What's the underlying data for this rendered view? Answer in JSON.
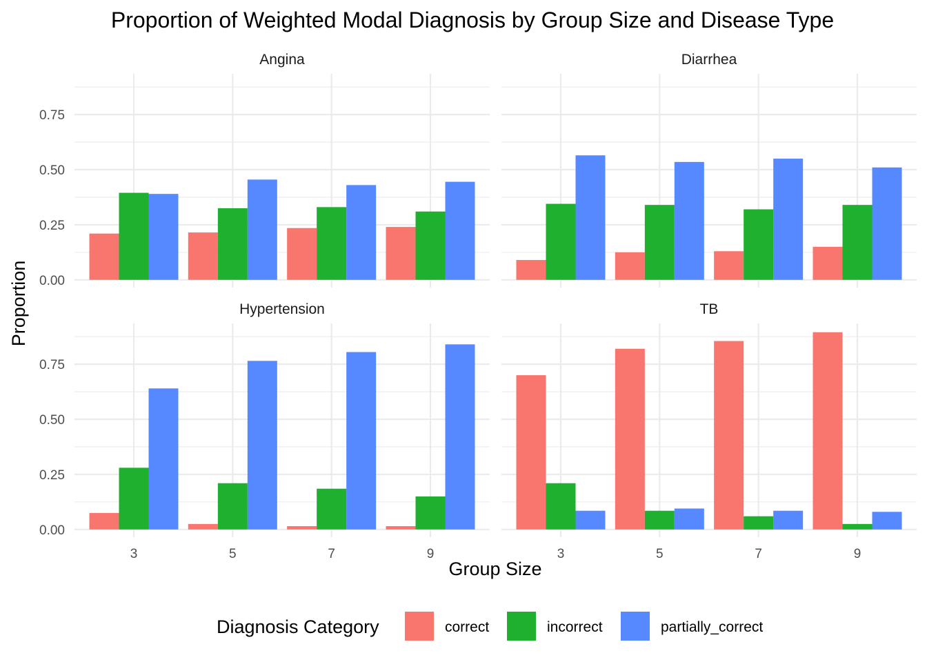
{
  "chart_data": {
    "type": "bar",
    "title": "Proportion of Weighted Modal Diagnosis by Group Size and Disease Type",
    "xlabel": "Group Size",
    "ylabel": "Proportion",
    "ylim": [
      -0.035,
      0.935
    ],
    "yticks": [
      0.0,
      0.25,
      0.5,
      0.75
    ],
    "ytick_labels": [
      "0.00",
      "0.25",
      "0.50",
      "0.75"
    ],
    "categories": [
      "3",
      "5",
      "7",
      "9"
    ],
    "grid": true,
    "legend": {
      "title": "Diagnosis Category",
      "position": "bottom",
      "entries": [
        "correct",
        "incorrect",
        "partially_correct"
      ]
    },
    "colors": {
      "correct": "#F8766D",
      "incorrect": "#1FB02F",
      "partially_correct": "#5689FF"
    },
    "facets": [
      {
        "name": "Angina",
        "series": [
          {
            "name": "correct",
            "values": [
              0.21,
              0.215,
              0.235,
              0.24
            ]
          },
          {
            "name": "incorrect",
            "values": [
              0.395,
              0.325,
              0.33,
              0.31
            ]
          },
          {
            "name": "partially_correct",
            "values": [
              0.39,
              0.455,
              0.43,
              0.445
            ]
          }
        ]
      },
      {
        "name": "Diarrhea",
        "series": [
          {
            "name": "correct",
            "values": [
              0.09,
              0.125,
              0.13,
              0.15
            ]
          },
          {
            "name": "incorrect",
            "values": [
              0.345,
              0.34,
              0.32,
              0.34
            ]
          },
          {
            "name": "partially_correct",
            "values": [
              0.565,
              0.535,
              0.55,
              0.51
            ]
          }
        ]
      },
      {
        "name": "Hypertension",
        "series": [
          {
            "name": "correct",
            "values": [
              0.075,
              0.025,
              0.015,
              0.015
            ]
          },
          {
            "name": "incorrect",
            "values": [
              0.28,
              0.21,
              0.185,
              0.15
            ]
          },
          {
            "name": "partially_correct",
            "values": [
              0.64,
              0.765,
              0.805,
              0.84
            ]
          }
        ]
      },
      {
        "name": "TB",
        "series": [
          {
            "name": "correct",
            "values": [
              0.7,
              0.82,
              0.855,
              0.895
            ]
          },
          {
            "name": "incorrect",
            "values": [
              0.21,
              0.085,
              0.06,
              0.025
            ]
          },
          {
            "name": "partially_correct",
            "values": [
              0.085,
              0.095,
              0.085,
              0.08
            ]
          }
        ]
      }
    ]
  }
}
